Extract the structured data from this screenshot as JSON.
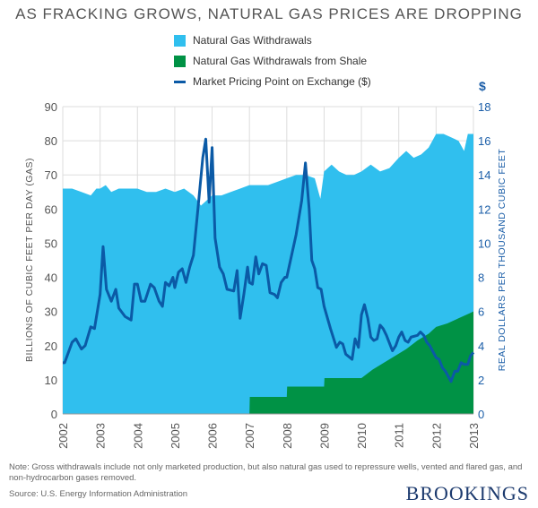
{
  "chart_data": {
    "type": "area",
    "title": "AS FRACKING GROWS, NATURAL GAS PRICES ARE DROPPING",
    "ylabel": "BILLIONS OF CUBIC FEET PER DAY (GAS)",
    "y2label": "REAL DOLLARS PER THOUSAND CUBIC FEET",
    "y2unit": "$",
    "xlim": [
      2002,
      2013
    ],
    "ylim": [
      0,
      90
    ],
    "y2lim": [
      0,
      18
    ],
    "xticks": [
      "2002",
      "2003",
      "2004",
      "2005",
      "2006",
      "2007",
      "2008",
      "2009",
      "2010",
      "2011",
      "2012",
      "2013"
    ],
    "yticks": [
      "0",
      "10",
      "20",
      "30",
      "40",
      "50",
      "60",
      "70",
      "80",
      "90"
    ],
    "y2ticks": [
      "0",
      "2",
      "4",
      "6",
      "8",
      "10",
      "12",
      "14",
      "16",
      "18"
    ],
    "grid": true,
    "legend": "top-center",
    "colors": {
      "withdrawals": "#30bfee",
      "shale": "#009245",
      "price": "#0b5aa6"
    },
    "series": [
      {
        "name": "Natural Gas Withdrawals",
        "axis": "left",
        "x": [
          2002,
          2002.25,
          2002.5,
          2002.75,
          2002.9,
          2003,
          2003.15,
          2003.3,
          2003.5,
          2003.75,
          2004,
          2004.25,
          2004.5,
          2004.75,
          2005,
          2005.25,
          2005.5,
          2005.7,
          2005.8,
          2006,
          2006.25,
          2006.5,
          2006.75,
          2007,
          2007.25,
          2007.5,
          2007.75,
          2008,
          2008.25,
          2008.5,
          2008.75,
          2008.9,
          2009,
          2009.2,
          2009.4,
          2009.6,
          2009.8,
          2010,
          2010.25,
          2010.5,
          2010.75,
          2011,
          2011.2,
          2011.4,
          2011.6,
          2011.8,
          2012,
          2012.2,
          2012.4,
          2012.6,
          2012.75,
          2012.85,
          2013
        ],
        "values": [
          66,
          66,
          65,
          64,
          66,
          66,
          67,
          65,
          66,
          66,
          66,
          65,
          65,
          66,
          65,
          66,
          64,
          61,
          62,
          64,
          64,
          65,
          66,
          67,
          67,
          67,
          68,
          69,
          70,
          70,
          69,
          63,
          71,
          73,
          71,
          70,
          70,
          71,
          73,
          71,
          72,
          75,
          77,
          75,
          76,
          78,
          82,
          82,
          81,
          80,
          77,
          82,
          82
        ]
      },
      {
        "name": "Natural Gas Withdrawals from Shale",
        "axis": "left",
        "x": [
          2002,
          2007,
          2007.01,
          2008,
          2008.01,
          2009,
          2009.01,
          2010,
          2010.3,
          2010.6,
          2010.9,
          2011.2,
          2011.5,
          2011.8,
          2012,
          2012.3,
          2012.6,
          2012.9,
          2013
        ],
        "values": [
          0,
          0,
          5,
          5,
          8,
          8,
          10.5,
          10.5,
          13,
          15,
          17,
          19,
          21.5,
          23.5,
          25.5,
          26.5,
          28,
          29.5,
          30
        ]
      },
      {
        "name": "Market Pricing Point on Exchange ($)",
        "axis": "right",
        "x": [
          2002,
          2002.05,
          2002.25,
          2002.35,
          2002.5,
          2002.6,
          2002.75,
          2002.85,
          2003,
          2003.08,
          2003.17,
          2003.3,
          2003.42,
          2003.5,
          2003.67,
          2003.83,
          2003.92,
          2004,
          2004.1,
          2004.2,
          2004.35,
          2004.45,
          2004.58,
          2004.67,
          2004.75,
          2004.85,
          2004.95,
          2005,
          2005.1,
          2005.2,
          2005.3,
          2005.4,
          2005.5,
          2005.62,
          2005.75,
          2005.83,
          2005.92,
          2006,
          2006.08,
          2006.2,
          2006.3,
          2006.4,
          2006.58,
          2006.67,
          2006.75,
          2006.85,
          2006.95,
          2007,
          2007.08,
          2007.17,
          2007.25,
          2007.35,
          2007.45,
          2007.55,
          2007.67,
          2007.75,
          2007.85,
          2007.95,
          2008,
          2008.1,
          2008.25,
          2008.4,
          2008.5,
          2008.6,
          2008.67,
          2008.75,
          2008.83,
          2008.92,
          2009,
          2009.17,
          2009.33,
          2009.42,
          2009.5,
          2009.58,
          2009.75,
          2009.83,
          2009.92,
          2010,
          2010.08,
          2010.17,
          2010.25,
          2010.33,
          2010.42,
          2010.5,
          2010.58,
          2010.67,
          2010.83,
          2010.92,
          2011,
          2011.08,
          2011.17,
          2011.25,
          2011.33,
          2011.5,
          2011.58,
          2011.67,
          2011.75,
          2011.83,
          2012,
          2012.08,
          2012.17,
          2012.25,
          2012.4,
          2012.5,
          2012.58,
          2012.67,
          2012.75,
          2012.85,
          2012.92,
          2013
        ],
        "values": [
          3.0,
          3.0,
          4.2,
          4.4,
          3.8,
          4.0,
          5.1,
          5.0,
          7.0,
          9.8,
          7.3,
          6.6,
          7.3,
          6.2,
          5.7,
          5.5,
          7.6,
          7.6,
          6.6,
          6.6,
          7.6,
          7.4,
          6.6,
          6.3,
          7.7,
          7.5,
          8.0,
          7.4,
          8.3,
          8.5,
          7.7,
          8.6,
          9.3,
          12.0,
          15.0,
          16.1,
          12.4,
          15.6,
          10.3,
          8.6,
          8.2,
          7.3,
          7.2,
          8.4,
          5.6,
          7.0,
          8.6,
          7.7,
          7.6,
          9.2,
          8.2,
          8.8,
          8.7,
          7.1,
          7.0,
          6.8,
          7.7,
          8.0,
          8.0,
          9.0,
          10.5,
          12.5,
          14.7,
          12.0,
          9.0,
          8.5,
          7.4,
          7.3,
          6.3,
          5.0,
          3.9,
          4.2,
          4.1,
          3.5,
          3.2,
          4.4,
          3.9,
          5.8,
          6.4,
          5.6,
          4.5,
          4.3,
          4.4,
          5.2,
          5.0,
          4.6,
          3.7,
          4.0,
          4.5,
          4.8,
          4.3,
          4.2,
          4.5,
          4.6,
          4.8,
          4.6,
          4.2,
          4.0,
          3.3,
          3.2,
          2.7,
          2.5,
          1.9,
          2.5,
          2.5,
          3.0,
          2.9,
          2.9,
          3.4,
          3.6
        ]
      }
    ]
  },
  "note": "Note: Gross withdrawals include not only marketed production, but also natural gas used to repressure wells, vented and flared gas, and non-hydrocarbon gases removed.",
  "source": "Source: U.S. Energy Information Administration",
  "logo": "BROOKINGS"
}
